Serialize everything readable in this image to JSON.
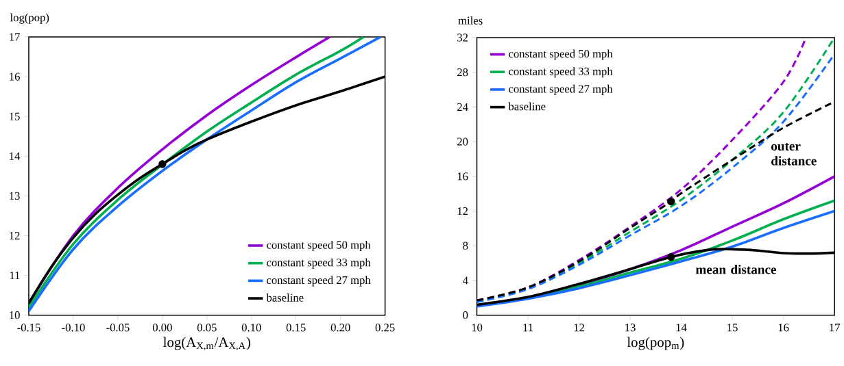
{
  "chart_data": [
    {
      "type": "line",
      "ylabel": "log(pop)",
      "xlabel": "log(A$_{X,m}$/A$_{X,A}$)",
      "xlim": [
        -0.15,
        0.25
      ],
      "ylim": [
        10,
        17
      ],
      "xticks": [
        {
          "value": -0.15,
          "label": "-0.15"
        },
        {
          "value": -0.1,
          "label": "-0.10"
        },
        {
          "value": -0.05,
          "label": "-0.05"
        },
        {
          "value": 0,
          "label": "0.00"
        },
        {
          "value": 0.05,
          "label": "0.05"
        },
        {
          "value": 0.1,
          "label": "0.10"
        },
        {
          "value": 0.15,
          "label": "0.15"
        },
        {
          "value": 0.2,
          "label": "0.20"
        },
        {
          "value": 0.25,
          "label": "0.25"
        }
      ],
      "yticks": [
        10,
        11,
        12,
        13,
        14,
        15,
        16,
        17
      ],
      "legend": "bottom right",
      "series": [
        {
          "name": "constant speed 50 mph",
          "color": "#9400d3",
          "x": [
            -0.15,
            -0.1,
            -0.05,
            0,
            0.05,
            0.1,
            0.15,
            0.188
          ],
          "values": [
            10.3,
            12.0,
            13.2,
            14.17,
            15.03,
            15.79,
            16.49,
            17
          ]
        },
        {
          "name": "constant speed 33 mph",
          "color": "#00b050",
          "x": [
            -0.15,
            -0.1,
            -0.05,
            0,
            0.05,
            0.1,
            0.15,
            0.2,
            0.226
          ],
          "values": [
            10.2,
            11.79,
            12.9,
            13.79,
            14.62,
            15.35,
            16.05,
            16.65,
            17
          ]
        },
        {
          "name": "constant speed 27 mph",
          "color": "#1a6eff",
          "x": [
            -0.15,
            -0.1,
            -0.05,
            0,
            0.05,
            0.1,
            0.15,
            0.2,
            0.245
          ],
          "values": [
            10.1,
            11.66,
            12.74,
            13.63,
            14.42,
            15.15,
            15.86,
            16.46,
            17
          ]
        },
        {
          "name": "baseline",
          "color": "#000000",
          "x": [
            -0.15,
            -0.125,
            -0.1,
            -0.075,
            -0.05,
            -0.025,
            0,
            0.025,
            0.05,
            0.1,
            0.15,
            0.2,
            0.25
          ],
          "values": [
            10.3,
            11.2,
            11.95,
            12.55,
            13.03,
            13.45,
            13.8,
            14.14,
            14.42,
            14.87,
            15.28,
            15.63,
            16.0
          ]
        },
        {
          "type": "scatter",
          "marker": "circle",
          "color": "#000000",
          "x": [
            0
          ],
          "values": [
            13.8
          ]
        }
      ]
    },
    {
      "type": "line",
      "ylabel": "miles",
      "xlabel": "log(pop$_{m}$)",
      "xlim": [
        10,
        17
      ],
      "ylim": [
        0,
        32
      ],
      "xticks": [
        10,
        11,
        12,
        13,
        14,
        15,
        16,
        17
      ],
      "yticks": [
        0,
        4,
        8,
        12,
        16,
        20,
        24,
        28,
        32
      ],
      "legend": "top left",
      "annotations": [
        "outer distance",
        "mean distance"
      ],
      "series": [
        {
          "name": "constant speed 50 mph",
          "color": "#9400d3",
          "x": [
            12,
            13,
            14,
            15,
            16,
            17
          ],
          "values": [
            3.5,
            5.3,
            7.5,
            10.2,
            12.9,
            16.0
          ]
        },
        {
          "name": "constant speed 33 mph",
          "color": "#00b050",
          "x": [
            10,
            11,
            12,
            13,
            14,
            15,
            16,
            17
          ],
          "values": [
            1.1,
            2.0,
            3.3,
            4.9,
            6.5,
            8.6,
            11.05,
            13.2
          ]
        },
        {
          "name": "constant speed 27 mph",
          "color": "#1a6eff",
          "x": [
            10,
            11,
            12,
            13,
            14,
            15,
            16,
            17
          ],
          "values": [
            1.0,
            1.9,
            3.1,
            4.6,
            6.2,
            7.9,
            10.05,
            12.0
          ]
        },
        {
          "name": "baseline",
          "color": "#000000",
          "x": [
            10,
            11,
            12,
            13,
            13.8,
            14.5,
            15,
            15.5,
            16,
            16.5,
            17
          ],
          "values": [
            1.2,
            2.1,
            3.6,
            5.3,
            6.7,
            7.5,
            7.6,
            7.45,
            7.15,
            7.1,
            7.2
          ]
        },
        {
          "color": "#9400d3",
          "line_style": "dashed",
          "x": [
            10,
            11,
            12,
            13,
            14,
            15,
            16,
            16.44
          ],
          "values": [
            1.7,
            3.2,
            6.35,
            10.2,
            14.5,
            20.2,
            26.9,
            32
          ]
        },
        {
          "color": "#00b050",
          "line_style": "dashed",
          "x": [
            10,
            11,
            12,
            13,
            14,
            15,
            16,
            17
          ],
          "values": [
            1.6,
            3.1,
            6.0,
            9.6,
            13.3,
            17.9,
            23.4,
            32
          ]
        },
        {
          "color": "#1a6eff",
          "line_style": "dashed",
          "x": [
            10,
            11,
            12,
            13,
            14,
            15,
            16,
            17
          ],
          "values": [
            1.5,
            3.0,
            5.8,
            9.2,
            12.6,
            17.0,
            22.3,
            30.1
          ]
        },
        {
          "color": "#000000",
          "line_style": "dashed",
          "x": [
            10,
            11,
            12,
            13,
            13.8,
            14,
            15,
            16,
            17
          ],
          "values": [
            1.7,
            3.2,
            6.2,
            10.05,
            13.1,
            14.05,
            17.9,
            21.6,
            24.6
          ]
        },
        {
          "type": "scatter",
          "marker": "circle",
          "color": "#000000",
          "x": [
            13.8,
            13.8
          ],
          "values": [
            6.7,
            13.1
          ]
        }
      ]
    }
  ]
}
